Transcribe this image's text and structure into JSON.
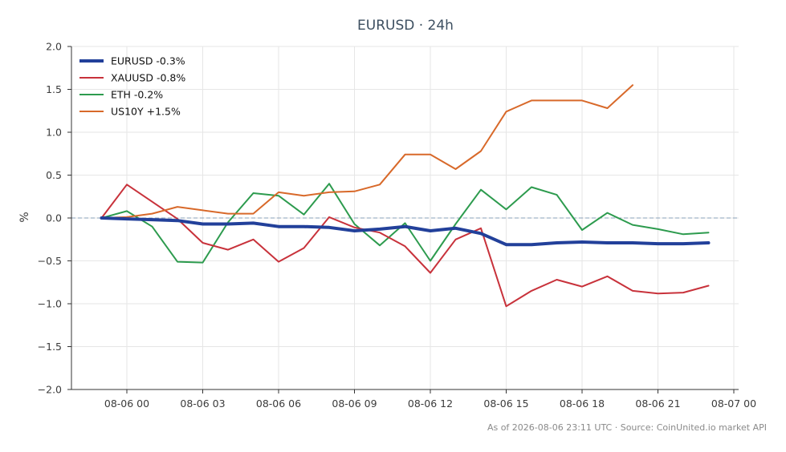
{
  "chart_data": {
    "type": "line",
    "title": "EURUSD · 24h",
    "ylabel": "%",
    "xlabel": "",
    "ylim": [
      -2.0,
      2.0
    ],
    "yticks": [
      -2.0,
      -1.5,
      -1.0,
      -0.5,
      0.0,
      0.5,
      1.0,
      1.5,
      2.0
    ],
    "ytick_labels": [
      "−2.0",
      "−1.5",
      "−1.0",
      "−0.5",
      "0.0",
      "0.5",
      "1.0",
      "1.5",
      "2.0"
    ],
    "xlim_hours": [
      -1.2,
      24.0
    ],
    "xticks_hours": [
      0,
      3,
      6,
      9,
      12,
      15,
      18,
      21,
      24
    ],
    "xtick_labels": [
      "08-06 00",
      "08-06 03",
      "08-06 06",
      "08-06 09",
      "08-06 12",
      "08-06 15",
      "08-06 18",
      "08-06 21",
      "08-07 00"
    ],
    "grid": true,
    "zero_line": true,
    "legend_position": "top-left",
    "series": [
      {
        "name": "EURUSD -0.3%",
        "color": "#22409a",
        "bold": true,
        "x": [
          -1,
          0,
          1,
          2,
          3,
          4,
          5,
          6,
          7,
          8,
          9,
          10,
          11,
          12,
          13,
          14,
          15,
          16,
          17,
          18,
          19,
          20,
          21,
          22,
          23
        ],
        "y": [
          0.0,
          -0.01,
          -0.02,
          -0.03,
          -0.07,
          -0.07,
          -0.06,
          -0.1,
          -0.1,
          -0.11,
          -0.15,
          -0.13,
          -0.1,
          -0.15,
          -0.12,
          -0.18,
          -0.31,
          -0.31,
          -0.29,
          -0.28,
          -0.29,
          -0.29,
          -0.3,
          -0.3,
          -0.29
        ]
      },
      {
        "name": "XAUUSD -0.8%",
        "color": "#c8323b",
        "bold": false,
        "x": [
          -1,
          0,
          1,
          2,
          3,
          4,
          5,
          6,
          7,
          8,
          9,
          10,
          11,
          12,
          13,
          14,
          15,
          16,
          17,
          18,
          19,
          20,
          21,
          22,
          23
        ],
        "y": [
          0.0,
          0.39,
          0.19,
          -0.01,
          -0.29,
          -0.37,
          -0.25,
          -0.51,
          -0.35,
          0.01,
          -0.11,
          -0.17,
          -0.33,
          -0.64,
          -0.25,
          -0.12,
          -1.03,
          -0.85,
          -0.72,
          -0.8,
          -0.68,
          -0.85,
          -0.88,
          -0.87,
          -0.79
        ]
      },
      {
        "name": "ETH -0.2%",
        "color": "#2d9b4e",
        "bold": false,
        "x": [
          -1,
          0,
          1,
          2,
          3,
          4,
          5,
          6,
          7,
          8,
          9,
          10,
          11,
          12,
          13,
          14,
          15,
          16,
          17,
          18,
          19,
          20,
          21,
          22,
          23
        ],
        "y": [
          0.0,
          0.08,
          -0.1,
          -0.51,
          -0.52,
          -0.05,
          0.29,
          0.26,
          0.04,
          0.4,
          -0.07,
          -0.32,
          -0.06,
          -0.5,
          -0.07,
          0.33,
          0.1,
          0.36,
          0.27,
          -0.14,
          0.06,
          -0.08,
          -0.13,
          -0.19,
          -0.17
        ]
      },
      {
        "name": "US10Y +1.5%",
        "color": "#d8692a",
        "bold": false,
        "x": [
          -1,
          0,
          1,
          2,
          3,
          4,
          5,
          6,
          7,
          8,
          9,
          10,
          11,
          12,
          13,
          14,
          15,
          16,
          17,
          18,
          19,
          20
        ],
        "y": [
          0.0,
          0.01,
          0.05,
          0.13,
          0.09,
          0.05,
          0.05,
          0.3,
          0.26,
          0.3,
          0.31,
          0.39,
          0.74,
          0.74,
          0.57,
          0.78,
          1.24,
          1.37,
          1.37,
          1.37,
          1.28,
          1.55
        ]
      }
    ]
  },
  "footer": {
    "text": "As of 2026-08-06 23:11 UTC · Source: CoinUnited.io market API"
  }
}
